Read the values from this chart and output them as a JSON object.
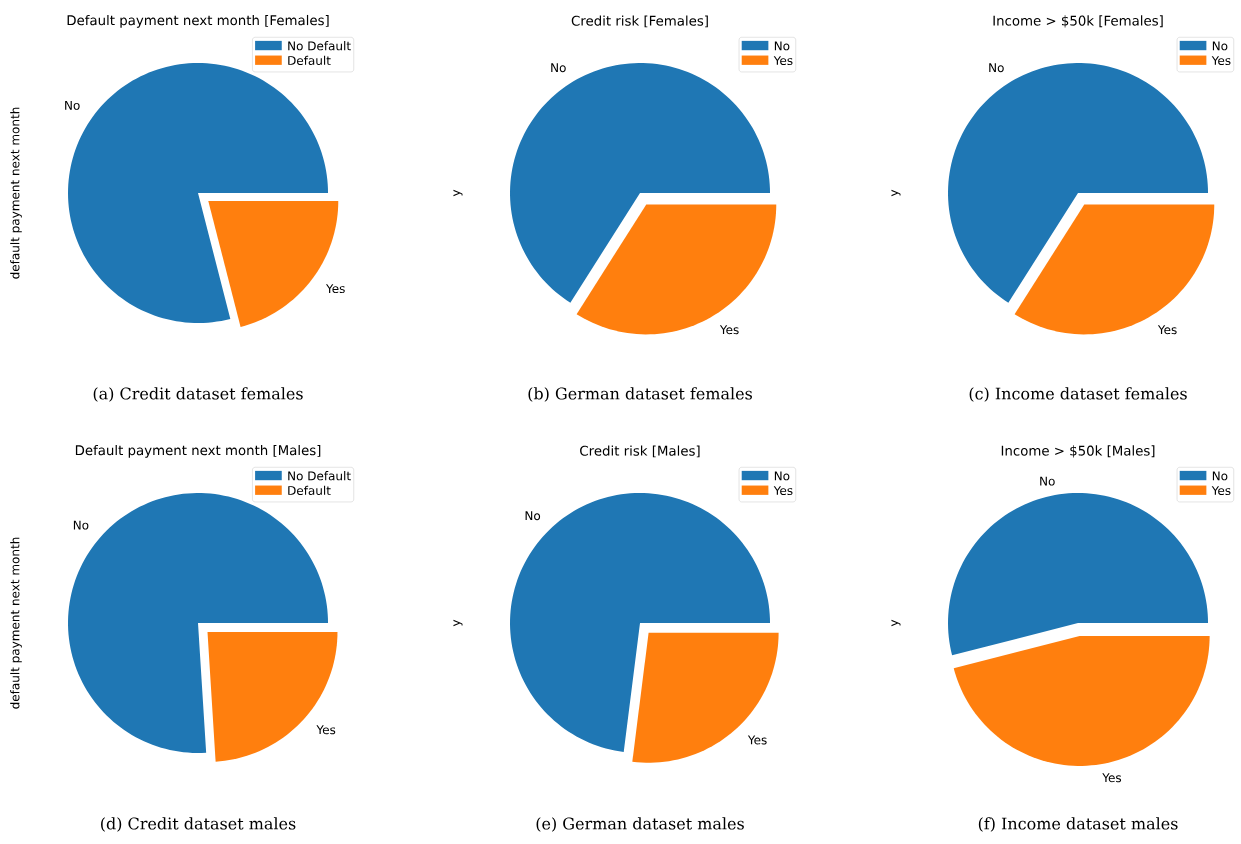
{
  "chart_data": [
    {
      "type": "pie",
      "title": "Default payment next month [Females]",
      "ylabel": "default payment next month",
      "categories": [
        "No Default",
        "Default"
      ],
      "values": [
        79,
        21
      ],
      "colors": [
        "#1f77b4",
        "#ff7f0e"
      ],
      "legend": "top right",
      "annotations": [
        {
          "text": "No",
          "x": "No Default"
        },
        {
          "text": "Yes",
          "x": "Default"
        },
        "(a) Credit dataset females"
      ]
    },
    {
      "type": "pie",
      "title": "Credit risk [Females]",
      "ylabel": "y",
      "categories": [
        "No",
        "Yes"
      ],
      "values": [
        66,
        34
      ],
      "colors": [
        "#1f77b4",
        "#ff7f0e"
      ],
      "legend": "top right",
      "annotations": [
        {
          "text": "No",
          "x": "No"
        },
        {
          "text": "Yes",
          "x": "Yes"
        },
        "(b) German dataset females"
      ]
    },
    {
      "type": "pie",
      "title": "Income > $50k [Females]",
      "ylabel": "y",
      "categories": [
        "No",
        "Yes"
      ],
      "values": [
        66,
        34
      ],
      "colors": [
        "#1f77b4",
        "#ff7f0e"
      ],
      "legend": "top right",
      "annotations": [
        {
          "text": "No",
          "x": "No"
        },
        {
          "text": "Yes",
          "x": "Yes"
        },
        "(c) Income dataset females"
      ]
    },
    {
      "type": "pie",
      "title": "Default payment next month [Males]",
      "ylabel": "default payment next month",
      "categories": [
        "No Default",
        "Default"
      ],
      "values": [
        76,
        24
      ],
      "colors": [
        "#1f77b4",
        "#ff7f0e"
      ],
      "legend": "top right",
      "annotations": [
        {
          "text": "No",
          "x": "No Default"
        },
        {
          "text": "Yes",
          "x": "Default"
        },
        "(d) Credit dataset males"
      ]
    },
    {
      "type": "pie",
      "title": "Credit risk [Males]",
      "ylabel": "y",
      "categories": [
        "No",
        "Yes"
      ],
      "values": [
        73,
        27
      ],
      "colors": [
        "#1f77b4",
        "#ff7f0e"
      ],
      "legend": "top right",
      "annotations": [
        {
          "text": "No",
          "x": "No"
        },
        {
          "text": "Yes",
          "x": "Yes"
        },
        "(e) German dataset males"
      ]
    },
    {
      "type": "pie",
      "title": "Income > $50k [Males]",
      "ylabel": "y",
      "categories": [
        "No",
        "Yes"
      ],
      "values": [
        54,
        46
      ],
      "colors": [
        "#1f77b4",
        "#ff7f0e"
      ],
      "legend": "top right",
      "annotations": [
        {
          "text": "No",
          "x": "No"
        },
        {
          "text": "Yes",
          "x": "Yes"
        },
        "(f) Income dataset males"
      ]
    }
  ]
}
